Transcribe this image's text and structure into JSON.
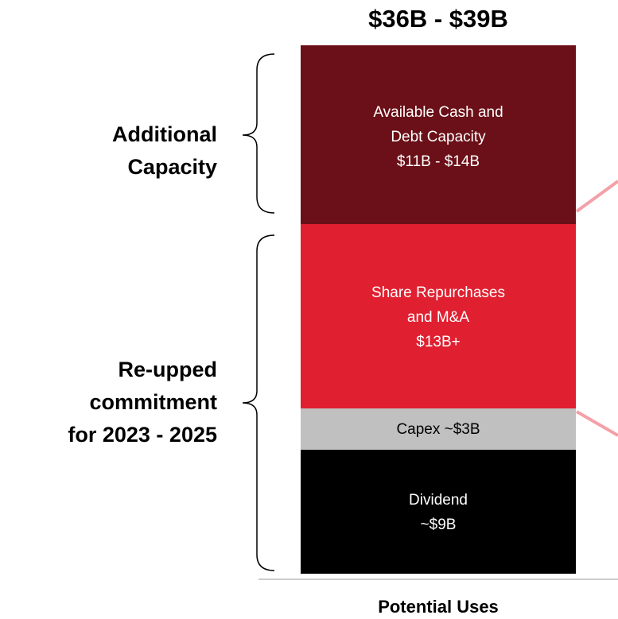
{
  "title": "$36B - $39B",
  "footer": "Potential Uses",
  "groups": [
    {
      "lines": [
        "Additional",
        "Capacity"
      ]
    },
    {
      "lines": [
        "Re-upped",
        "commitment",
        "for 2023 - 2025"
      ]
    }
  ],
  "segments": [
    {
      "lines": [
        "Available Cash and",
        "Debt Capacity",
        "$11B - $14B"
      ]
    },
    {
      "lines": [
        "Share Repurchases",
        "and M&A",
        "$13B+"
      ]
    },
    {
      "lines": [
        "Capex ~$3B"
      ]
    },
    {
      "lines": [
        "Dividend",
        "~$9B"
      ]
    }
  ]
}
